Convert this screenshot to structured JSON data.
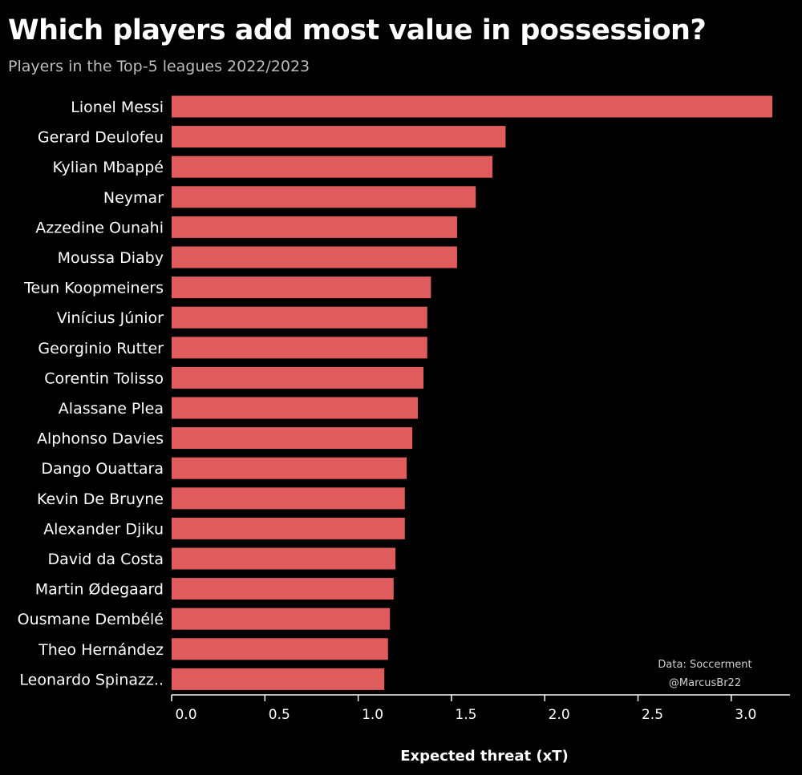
{
  "chart_data": {
    "type": "bar",
    "orientation": "horizontal",
    "title": "Which players add most value in possession?",
    "subtitle": "Players in the Top-5 leagues 2022/2023",
    "xlabel": "Expected threat (xT)",
    "ylabel": "",
    "xlim": [
      0,
      3.25
    ],
    "xticks": [
      "0.0",
      "0.5",
      "1.0",
      "1.5",
      "2.0",
      "2.5",
      "3.0"
    ],
    "grid": false,
    "categories": [
      "Lionel Messi",
      "Gerard Deulofeu",
      "Kylian Mbappé",
      "Neymar",
      "Azzedine Ounahi",
      "Moussa Diaby",
      "Teun Koopmeiners",
      "Vinícius Júnior",
      "Georginio Rutter",
      "Corentin Tolisso",
      "Alassane Plea",
      "Alphonso Davies",
      "Dango Ouattara",
      "Kevin De Bruyne",
      "Alexander Djiku",
      "David da Costa",
      "Martin Ødegaard",
      "Ousmane Dembélé",
      "Theo Hernández",
      "Leonardo Spinazz.."
    ],
    "values": [
      3.22,
      1.79,
      1.72,
      1.63,
      1.53,
      1.53,
      1.39,
      1.37,
      1.37,
      1.35,
      1.32,
      1.29,
      1.26,
      1.25,
      1.25,
      1.2,
      1.19,
      1.17,
      1.16,
      1.14
    ],
    "bar_color": "#e05b5b",
    "source_lines": [
      "Data: Soccerment",
      "@MarcusBr22"
    ]
  }
}
